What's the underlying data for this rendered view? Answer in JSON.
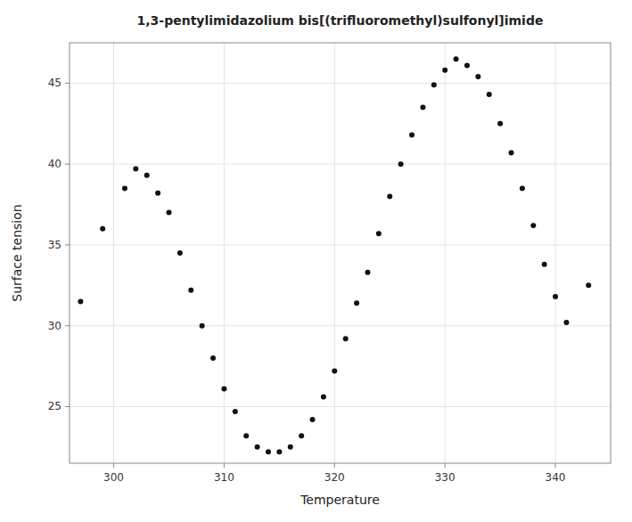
{
  "chart_data": {
    "type": "scatter",
    "title": "1,3-pentylimidazolium bis[(trifluoromethyl)sulfonyl]imide",
    "xlabel": "Temperature",
    "ylabel": "Surface tension",
    "x": [
      297,
      299,
      301,
      302,
      303,
      304,
      305,
      306,
      307,
      308,
      309,
      310,
      311,
      312,
      313,
      314,
      315,
      316,
      317,
      318,
      319,
      320,
      321,
      322,
      323,
      324,
      325,
      326,
      327,
      328,
      329,
      330,
      331,
      332,
      333,
      334,
      335,
      336,
      337,
      338,
      339,
      340,
      341,
      343
    ],
    "values": [
      31.5,
      36.0,
      38.5,
      39.7,
      39.3,
      38.2,
      37.0,
      34.5,
      32.2,
      30.0,
      28.0,
      26.1,
      24.7,
      23.2,
      22.5,
      22.2,
      22.2,
      22.5,
      23.2,
      24.2,
      25.6,
      27.2,
      29.2,
      31.4,
      33.3,
      35.7,
      38.0,
      40.0,
      41.8,
      43.5,
      44.9,
      45.8,
      46.5,
      46.1,
      45.4,
      44.3,
      42.5,
      40.7,
      38.5,
      36.2,
      33.8,
      31.8,
      30.2,
      32.5
    ],
    "color": "#111111",
    "xlim": [
      296,
      345
    ],
    "ylim": [
      21.5,
      47.5
    ],
    "xticks": [
      300,
      310,
      320,
      330,
      340
    ],
    "yticks": [
      25,
      30,
      35,
      40,
      45
    ],
    "grid": true
  }
}
